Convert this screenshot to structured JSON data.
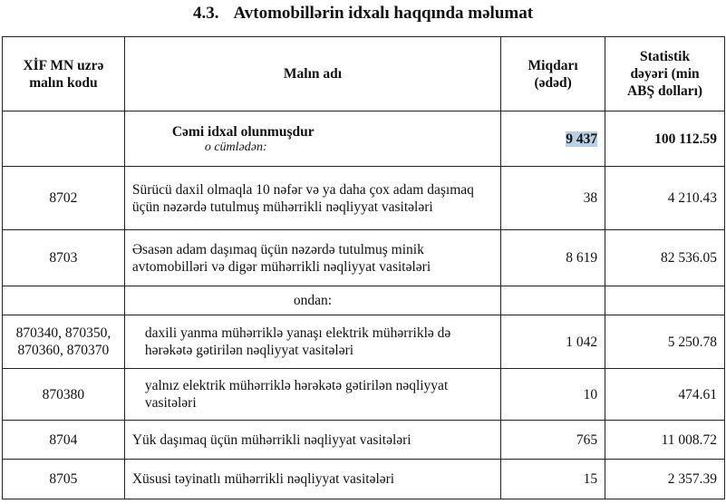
{
  "title": {
    "number": "4.3.",
    "text": "Avtomobillərin idxalı haqqında məlumat"
  },
  "table": {
    "headers": [
      "XİF MN uzrə malın kodu",
      "Malın adı",
      "Miqdarı (ədəd)",
      "Statistik dəyəri (min ABŞ dolları)"
    ],
    "total": {
      "label": "Cəmi idxal olunmuşdur",
      "sublabel": "o cümlədən:",
      "quantity": "9 437",
      "value": "100 112.59"
    },
    "rows": [
      {
        "code": "8702",
        "name": "Sürücü daxil olmaqla 10 nəfər və ya daha çox adam daşımaq üçün nəzərdə tutulmuş mühərrikli nəqliyyat vasitələri",
        "quantity": "38",
        "value": "4 210.43"
      },
      {
        "code": "8703",
        "name": "Əsasən adam daşımaq üçün nəzərdə tutulmuş minik avtomobilləri və digər mühərrikli nəqliyyat vasitələri",
        "quantity": "8 619",
        "value": "82 536.05"
      }
    ],
    "ondan": "ondan:",
    "subrows": [
      {
        "code": "870340, 870350, 870360, 870370",
        "name": "daxili yanma mühərriklə yanaşı elektrik mühərriklə də hərəkətə gətirilən nəqliyyat vasitələri",
        "quantity": "1 042",
        "value": "5 250.78"
      },
      {
        "code": "870380",
        "name": "yalnız elektrik mühərriklə hərəkətə gətirilən nəqliyyat vasitələri",
        "quantity": "10",
        "value": "474.61"
      }
    ],
    "rows2": [
      {
        "code": "8704",
        "name": "Yük daşımaq üçün mühərrikli nəqliyyat vasitələri",
        "quantity": "765",
        "value": "11 008.72"
      },
      {
        "code": "8705",
        "name": "Xüsusi təyinatlı mühərrikli nəqliyyat vasitələri",
        "quantity": "15",
        "value": "2 357.39"
      }
    ]
  }
}
